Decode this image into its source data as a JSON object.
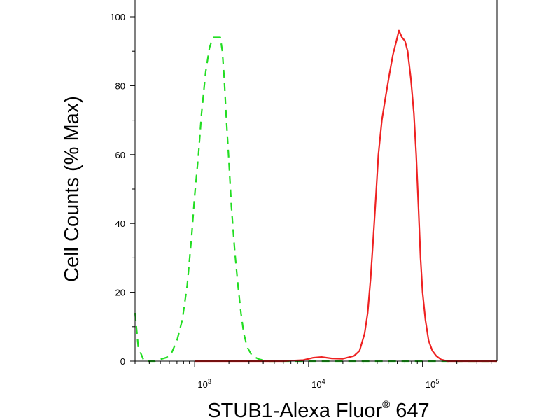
{
  "chart_data": {
    "type": "line",
    "title": "",
    "xlabel": "STUB1-Alexa Fluor",
    "xlabel_superscript": "®",
    "xlabel_suffix": " 647",
    "ylabel": "Cell Counts (% Max)",
    "x_scale": "log",
    "xlim": [
      300,
      450000
    ],
    "ylim": [
      0,
      100
    ],
    "grid": false,
    "legend": "none",
    "y_ticks": [
      {
        "value": 0,
        "label": "0"
      },
      {
        "value": 20,
        "label": "20"
      },
      {
        "value": 40,
        "label": "40"
      },
      {
        "value": 60,
        "label": "60"
      },
      {
        "value": 80,
        "label": "80"
      },
      {
        "value": 100,
        "label": "100"
      }
    ],
    "x_major_ticks": [
      {
        "value": 1000,
        "base": "10",
        "exp": "3"
      },
      {
        "value": 10000,
        "base": "10",
        "exp": "4"
      },
      {
        "value": 100000,
        "base": "10",
        "exp": "5"
      }
    ],
    "series": [
      {
        "color": "#22dd22",
        "style": "dashed",
        "points": [
          [
            300,
            14
          ],
          [
            320,
            4
          ],
          [
            360,
            0
          ],
          [
            450,
            0
          ],
          [
            500,
            0.5
          ],
          [
            560,
            1
          ],
          [
            620,
            2
          ],
          [
            700,
            6
          ],
          [
            780,
            12
          ],
          [
            860,
            22
          ],
          [
            940,
            36
          ],
          [
            1000,
            48
          ],
          [
            1080,
            60
          ],
          [
            1150,
            72
          ],
          [
            1250,
            84
          ],
          [
            1350,
            91
          ],
          [
            1450,
            94
          ],
          [
            1560,
            94
          ],
          [
            1680,
            94
          ],
          [
            1750,
            90
          ],
          [
            1820,
            82
          ],
          [
            1900,
            70
          ],
          [
            2000,
            58
          ],
          [
            2100,
            45
          ],
          [
            2250,
            32
          ],
          [
            2400,
            22
          ],
          [
            2550,
            14
          ],
          [
            2700,
            8
          ],
          [
            2900,
            4
          ],
          [
            3200,
            1.5
          ],
          [
            3700,
            0.5
          ],
          [
            4500,
            0
          ],
          [
            10000,
            0
          ],
          [
            25000,
            0
          ],
          [
            60000,
            0
          ],
          [
            200000,
            0
          ],
          [
            450000,
            0
          ]
        ]
      },
      {
        "color": "#ee2222",
        "style": "solid",
        "points": [
          [
            1000,
            0
          ],
          [
            6000,
            0
          ],
          [
            9000,
            0.3
          ],
          [
            11000,
            1
          ],
          [
            13000,
            1.2
          ],
          [
            16000,
            0.8
          ],
          [
            20000,
            0.7
          ],
          [
            25000,
            1.5
          ],
          [
            28000,
            3
          ],
          [
            31000,
            8
          ],
          [
            33000,
            14
          ],
          [
            35000,
            24
          ],
          [
            37000,
            36
          ],
          [
            39000,
            48
          ],
          [
            41000,
            60
          ],
          [
            44000,
            70
          ],
          [
            47000,
            76
          ],
          [
            51000,
            83
          ],
          [
            55000,
            89
          ],
          [
            59000,
            93
          ],
          [
            62000,
            96
          ],
          [
            66000,
            94
          ],
          [
            70000,
            93
          ],
          [
            74000,
            90
          ],
          [
            79000,
            82
          ],
          [
            84000,
            72
          ],
          [
            88000,
            60
          ],
          [
            92000,
            45
          ],
          [
            96000,
            30
          ],
          [
            100000,
            20
          ],
          [
            106000,
            12
          ],
          [
            113000,
            6
          ],
          [
            122000,
            3
          ],
          [
            132000,
            1.5
          ],
          [
            145000,
            0.5
          ],
          [
            165000,
            0
          ],
          [
            450000,
            0
          ]
        ]
      }
    ]
  }
}
